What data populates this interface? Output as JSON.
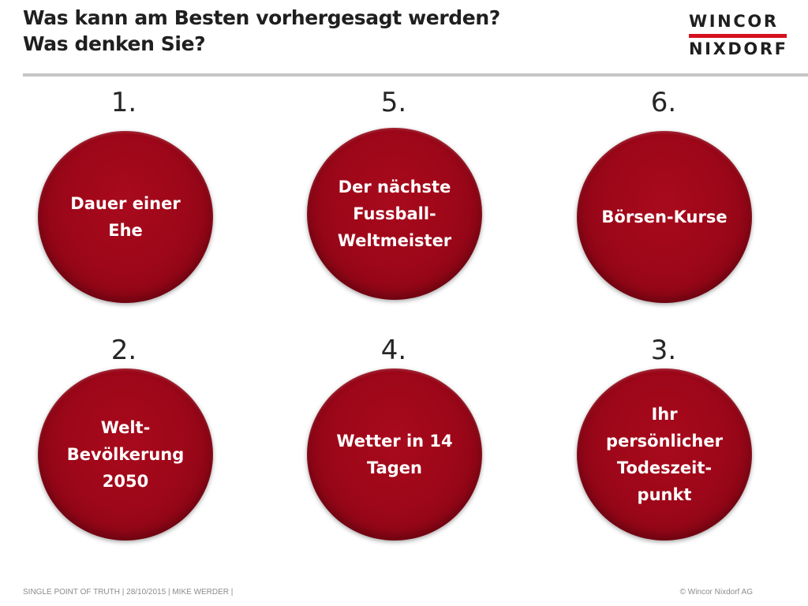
{
  "title": {
    "line1": "Was kann am Besten vorhergesagt werden?",
    "line2": "Was denken Sie?"
  },
  "logo": {
    "line1": "WINCOR",
    "line2": "NIXDORF",
    "accent_color": "#d4111e"
  },
  "items": [
    {
      "number": "1.",
      "label": "Dauer einer\nEhe"
    },
    {
      "number": "5.",
      "label": "Der nächste\nFussball-\nWeltmeister"
    },
    {
      "number": "6.",
      "label": "Börsen-Kurse"
    },
    {
      "number": "2.",
      "label": "Welt-\nBevölkerung\n2050"
    },
    {
      "number": "4.",
      "label": "Wetter in 14\nTagen"
    },
    {
      "number": "3.",
      "label": "Ihr\npersönlicher\nTodeszeit-\npunkt"
    }
  ],
  "colors": {
    "circle": "#9d0719",
    "rule": "#c6c6c6"
  },
  "footer": {
    "left": "SINGLE POINT OF TRUTH |  28/10/2015 | MIKE WERDER |",
    "right": "© Wincor Nixdorf  AG"
  }
}
